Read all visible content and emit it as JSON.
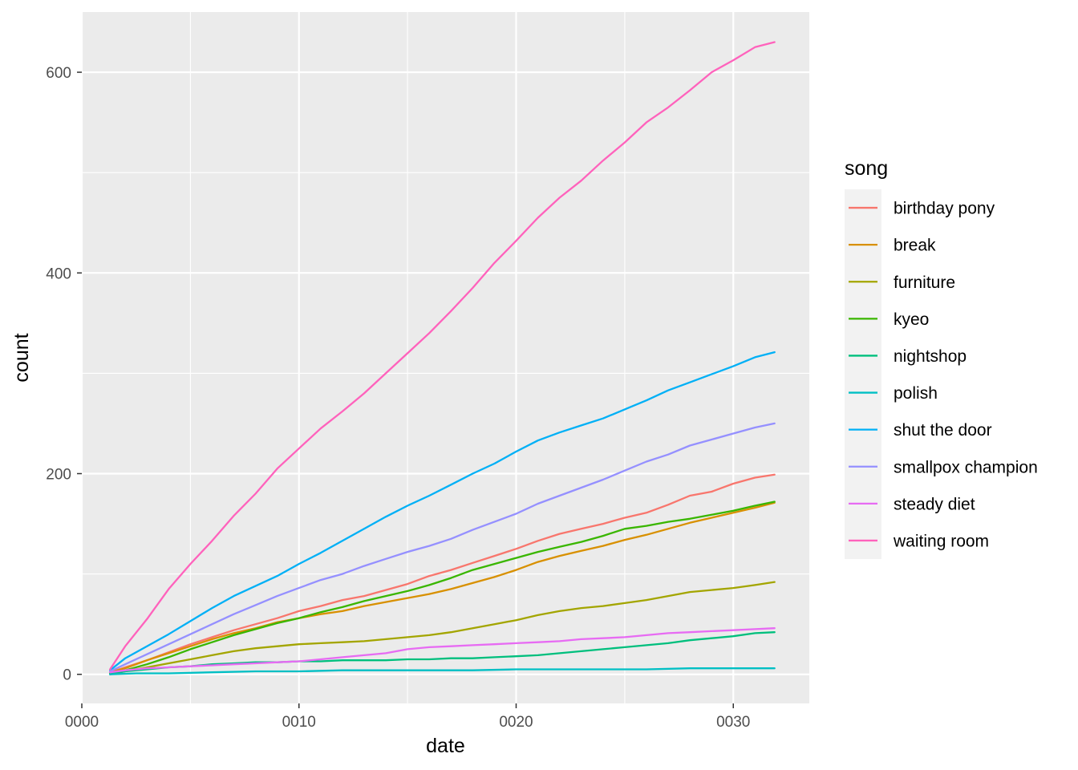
{
  "chart_data": {
    "type": "line",
    "x_axis": {
      "label": "date",
      "lim": [
        0,
        33.5
      ],
      "ticks": [
        0,
        10,
        20,
        30
      ],
      "tick_labels": [
        "0000",
        "0010",
        "0020",
        "0030"
      ]
    },
    "y_axis": {
      "label": "count",
      "lim": [
        -29,
        660
      ],
      "ticks": [
        0,
        200,
        400,
        600
      ],
      "tick_labels": [
        "0",
        "200",
        "400",
        "600"
      ],
      "minor_ticks": [
        100,
        300,
        500
      ]
    },
    "grid": true,
    "legend": {
      "title": "song",
      "placement": "right"
    },
    "series": [
      {
        "name": "birthday pony",
        "color": "#F8766D",
        "x": [
          1.3,
          2,
          3,
          4,
          5,
          6,
          7,
          8,
          9,
          10,
          11,
          12,
          13,
          14,
          15,
          16,
          17,
          18,
          19,
          20,
          21,
          22,
          23,
          24,
          25,
          26,
          27,
          28,
          29,
          30,
          31,
          31.9
        ],
        "y": [
          2,
          7,
          14,
          22,
          30,
          37,
          44,
          50,
          56,
          63,
          68,
          74,
          78,
          84,
          90,
          98,
          104,
          111,
          118,
          125,
          133,
          140,
          145,
          150,
          156,
          161,
          169,
          178,
          182,
          190,
          196,
          199
        ]
      },
      {
        "name": "break",
        "color": "#D89000",
        "x": [
          1.3,
          2,
          3,
          4,
          5,
          6,
          7,
          8,
          9,
          10,
          11,
          12,
          13,
          14,
          15,
          16,
          17,
          18,
          19,
          20,
          21,
          22,
          23,
          24,
          25,
          26,
          27,
          28,
          29,
          30,
          31,
          31.9
        ],
        "y": [
          2,
          6,
          14,
          21,
          28,
          35,
          41,
          46,
          52,
          56,
          60,
          63,
          68,
          72,
          76,
          80,
          85,
          91,
          97,
          104,
          112,
          118,
          123,
          128,
          134,
          139,
          145,
          151,
          156,
          161,
          166,
          171
        ]
      },
      {
        "name": "furniture",
        "color": "#A3A500",
        "x": [
          1.3,
          2,
          3,
          4,
          5,
          6,
          7,
          8,
          9,
          10,
          11,
          12,
          13,
          14,
          15,
          16,
          17,
          18,
          19,
          20,
          21,
          22,
          23,
          24,
          25,
          26,
          27,
          28,
          29,
          30,
          31,
          31.9
        ],
        "y": [
          1,
          3,
          7,
          11,
          15,
          19,
          23,
          26,
          28,
          30,
          31,
          32,
          33,
          35,
          37,
          39,
          42,
          46,
          50,
          54,
          59,
          63,
          66,
          68,
          71,
          74,
          78,
          82,
          84,
          86,
          89,
          92
        ]
      },
      {
        "name": "kyeo",
        "color": "#39B600",
        "x": [
          1.3,
          2,
          3,
          4,
          5,
          6,
          7,
          8,
          9,
          10,
          11,
          12,
          13,
          14,
          15,
          16,
          17,
          18,
          19,
          20,
          21,
          22,
          23,
          24,
          25,
          26,
          27,
          28,
          29,
          30,
          31,
          31.9
        ],
        "y": [
          1,
          4,
          10,
          17,
          25,
          32,
          39,
          45,
          51,
          56,
          62,
          67,
          73,
          78,
          83,
          89,
          96,
          104,
          110,
          116,
          122,
          127,
          132,
          138,
          145,
          148,
          152,
          155,
          159,
          163,
          168,
          172
        ]
      },
      {
        "name": "nightshop",
        "color": "#00BF7D",
        "x": [
          1.3,
          2,
          3,
          4,
          5,
          6,
          7,
          8,
          9,
          10,
          11,
          12,
          13,
          14,
          15,
          16,
          17,
          18,
          19,
          20,
          21,
          22,
          23,
          24,
          25,
          26,
          27,
          28,
          29,
          30,
          31,
          31.9
        ],
        "y": [
          0,
          3,
          5,
          7,
          8,
          10,
          11,
          12,
          12,
          13,
          13,
          14,
          14,
          14,
          15,
          15,
          16,
          16,
          17,
          18,
          19,
          21,
          23,
          25,
          27,
          29,
          31,
          34,
          36,
          38,
          41,
          42
        ]
      },
      {
        "name": "polish",
        "color": "#00BFC4",
        "x": [
          1.3,
          2.5,
          4,
          6,
          8,
          10,
          12,
          14,
          16,
          18,
          20,
          22,
          24,
          26,
          28,
          30,
          31.9
        ],
        "y": [
          0,
          1,
          1,
          2,
          3,
          3,
          4,
          4,
          4,
          4,
          5,
          5,
          5,
          5,
          6,
          6,
          6
        ]
      },
      {
        "name": "shut the door",
        "color": "#00B0F6",
        "x": [
          1.3,
          2,
          3,
          4,
          5,
          6,
          7,
          8,
          9,
          10,
          11,
          12,
          13,
          14,
          15,
          16,
          17,
          18,
          19,
          20,
          21,
          22,
          23,
          24,
          25,
          26,
          27,
          28,
          29,
          30,
          31,
          31.9
        ],
        "y": [
          4,
          16,
          28,
          40,
          53,
          66,
          78,
          88,
          98,
          110,
          121,
          133,
          145,
          157,
          168,
          178,
          189,
          200,
          210,
          222,
          233,
          241,
          248,
          255,
          264,
          273,
          283,
          291,
          299,
          307,
          316,
          321
        ]
      },
      {
        "name": "smallpox champion",
        "color": "#9590FF",
        "x": [
          1.3,
          2,
          3,
          4,
          5,
          6,
          7,
          8,
          9,
          10,
          11,
          12,
          13,
          14,
          15,
          16,
          17,
          18,
          19,
          20,
          21,
          22,
          23,
          24,
          25,
          26,
          27,
          28,
          29,
          30,
          31,
          31.9
        ],
        "y": [
          3,
          10,
          20,
          30,
          40,
          50,
          60,
          69,
          78,
          86,
          94,
          100,
          108,
          115,
          122,
          128,
          135,
          144,
          152,
          160,
          170,
          178,
          186,
          194,
          203,
          212,
          219,
          228,
          234,
          240,
          246,
          250
        ]
      },
      {
        "name": "steady diet",
        "color": "#E76BF3",
        "x": [
          1.3,
          2,
          3,
          4,
          5,
          6,
          7,
          8,
          9,
          10,
          11,
          12,
          13,
          14,
          15,
          16,
          17,
          18,
          19,
          20,
          21,
          22,
          23,
          24,
          25,
          26,
          27,
          28,
          29,
          30,
          31,
          31.9
        ],
        "y": [
          2,
          4,
          6,
          7,
          8,
          9,
          10,
          11,
          12,
          13,
          15,
          17,
          19,
          21,
          25,
          27,
          28,
          29,
          30,
          31,
          32,
          33,
          35,
          36,
          37,
          39,
          41,
          42,
          43,
          44,
          45,
          46
        ]
      },
      {
        "name": "waiting room",
        "color": "#FF62BC",
        "x": [
          1.3,
          2,
          3,
          4,
          5,
          6,
          7,
          8,
          9,
          10,
          11,
          12,
          13,
          14,
          15,
          16,
          17,
          18,
          19,
          20,
          21,
          22,
          23,
          24,
          25,
          26,
          27,
          28,
          29,
          30,
          31,
          31.9
        ],
        "y": [
          5,
          28,
          55,
          85,
          110,
          133,
          158,
          180,
          205,
          225,
          245,
          262,
          280,
          300,
          320,
          340,
          362,
          385,
          410,
          432,
          455,
          475,
          492,
          512,
          530,
          550,
          565,
          582,
          600,
          612,
          625,
          630
        ]
      }
    ]
  }
}
